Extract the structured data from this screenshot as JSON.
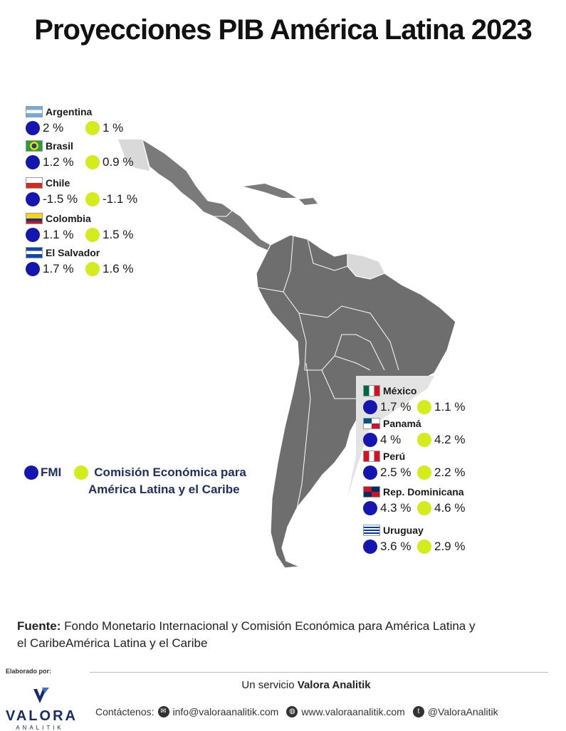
{
  "title": "Proyecciones PIB América Latina 2023",
  "legend": {
    "imf_label": "FMI",
    "cepal_label_line1": "Comisión Económica para",
    "cepal_label_line2": "América Latina y el Caribe",
    "imf_color": "#1515b0",
    "cepal_color": "#d4ec1e"
  },
  "countries_left": [
    {
      "name": "Argentina",
      "flag": "argentina",
      "imf": "2 %",
      "cepal": "1 %"
    },
    {
      "name": "Brasil",
      "flag": "brasil",
      "imf": "1.2 %",
      "cepal": "0.9 %"
    },
    {
      "name": "Chile",
      "flag": "chile",
      "imf": "-1.5 %",
      "cepal": "-1.1 %"
    },
    {
      "name": "Colombia",
      "flag": "colombia",
      "imf": "1.1 %",
      "cepal": "1.5 %"
    },
    {
      "name": "El Salvador",
      "flag": "el-salvador",
      "imf": "1.7 %",
      "cepal": "1.6 %"
    }
  ],
  "countries_right": [
    {
      "name": "México",
      "flag": "mexico",
      "imf": "1.7 %",
      "cepal": "1.1 %"
    },
    {
      "name": "Panamá",
      "flag": "panama",
      "imf": "4 %",
      "cepal": "4.2 %"
    },
    {
      "name": "Perú",
      "flag": "peru",
      "imf": "2.5 %",
      "cepal": "2.2 %"
    },
    {
      "name": "Rep. Dominicana",
      "flag": "rep-dominicana",
      "imf": "4.3 %",
      "cepal": "4.6 %"
    },
    {
      "name": "Uruguay",
      "flag": "uruguay",
      "imf": "3.6 %",
      "cepal": "2.9 %"
    }
  ],
  "source": {
    "label": "Fuente:",
    "text": "Fondo Monetario Internacional y Comisión Económica para América Latina y el CaribeAmérica Latina y el Caribe"
  },
  "footer": {
    "made_by": "Elaborado por:",
    "service_prefix": "Un servicio ",
    "service_brand": "Valora Analitik",
    "logo_word": "VALORA",
    "logo_sub": "ANALITIK",
    "contact_label": "Contáctenos:",
    "email": "info@valoraanalitik.com",
    "website": "www.valoraanalitik.com",
    "twitter": "@ValoraAnalitik"
  }
}
